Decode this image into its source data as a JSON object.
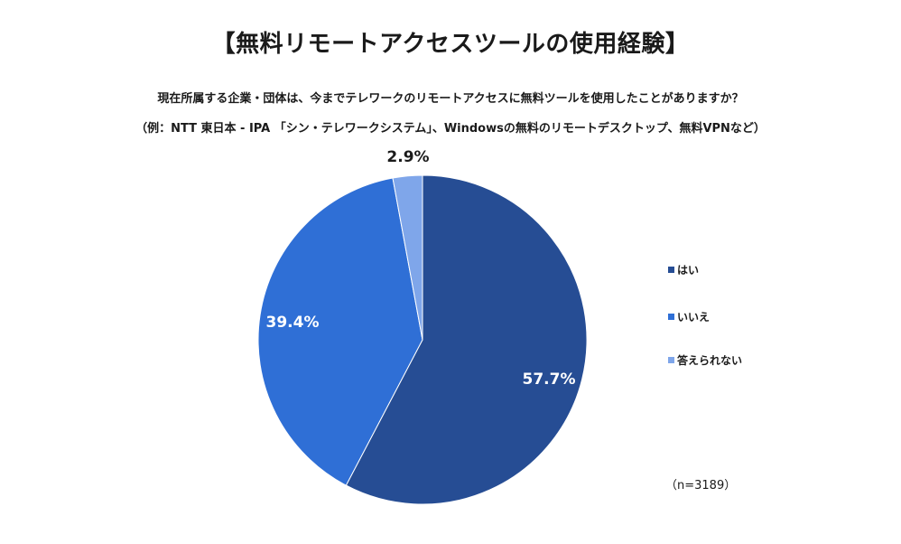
{
  "title": "【無料リモートアクセスツールの使用経験】",
  "subtitle_line1": "現在所属する企業・団体は、今までテレワークのリモートアクセスに無料ツールを使用したことがありますか？",
  "subtitle_line2": "（例：NTT 東日本 - IPA 「シン・テレワークシステム」、Windowsの無料のリモートデスクトップ、無料VPNなど）",
  "note": "（n=3189）",
  "chart_data": {
    "type": "pie",
    "title": "【無料リモートアクセスツールの使用経験】",
    "categories": [
      "はい",
      "いいえ",
      "答えられない"
    ],
    "values": [
      57.7,
      39.4,
      2.9
    ],
    "labels": [
      "57.7%",
      "39.4%",
      "2.9%"
    ],
    "colors": [
      "#264d94",
      "#2f6fd6",
      "#7fa6ea"
    ],
    "label_colors": [
      "#ffffff",
      "#ffffff",
      "#1a1a1a"
    ],
    "start": "12 o'clock",
    "direction": "clockwise",
    "legend_position": "right"
  }
}
